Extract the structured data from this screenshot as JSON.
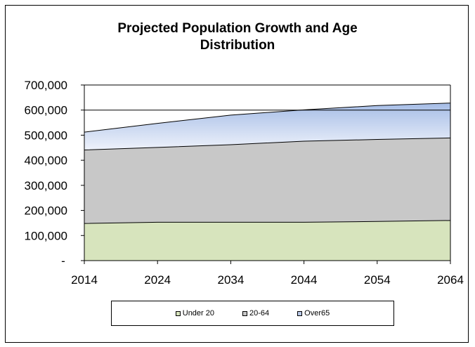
{
  "chart_data": {
    "type": "area",
    "stacked": true,
    "title": "Projected Population Growth and Age Distribution",
    "title_lines": [
      "Projected Population Growth and Age",
      "Distribution"
    ],
    "x": [
      "2014",
      "2024",
      "2034",
      "2044",
      "2054",
      "2064"
    ],
    "ylim": [
      0,
      700000
    ],
    "yticks": [
      0,
      100000,
      200000,
      300000,
      400000,
      500000,
      600000,
      700000
    ],
    "ytick_labels": [
      "-",
      "100,000",
      "200,000",
      "300,000",
      "400,000",
      "500,000",
      "600,000",
      "700,000"
    ],
    "grid": "single horizontal line at 600,000",
    "legend_position": "bottom",
    "series": [
      {
        "name": "Under 20",
        "values": [
          148000,
          153000,
          153000,
          153000,
          156000,
          160000
        ],
        "color": "#d7e4bd"
      },
      {
        "name": "20-64",
        "values": [
          293000,
          298000,
          309000,
          323000,
          327000,
          329000
        ],
        "color": "#c8c8c8"
      },
      {
        "name": "Over65",
        "values": [
          71000,
          96000,
          118000,
          125000,
          135000,
          139000
        ],
        "color": "#b9c9e8"
      }
    ]
  }
}
